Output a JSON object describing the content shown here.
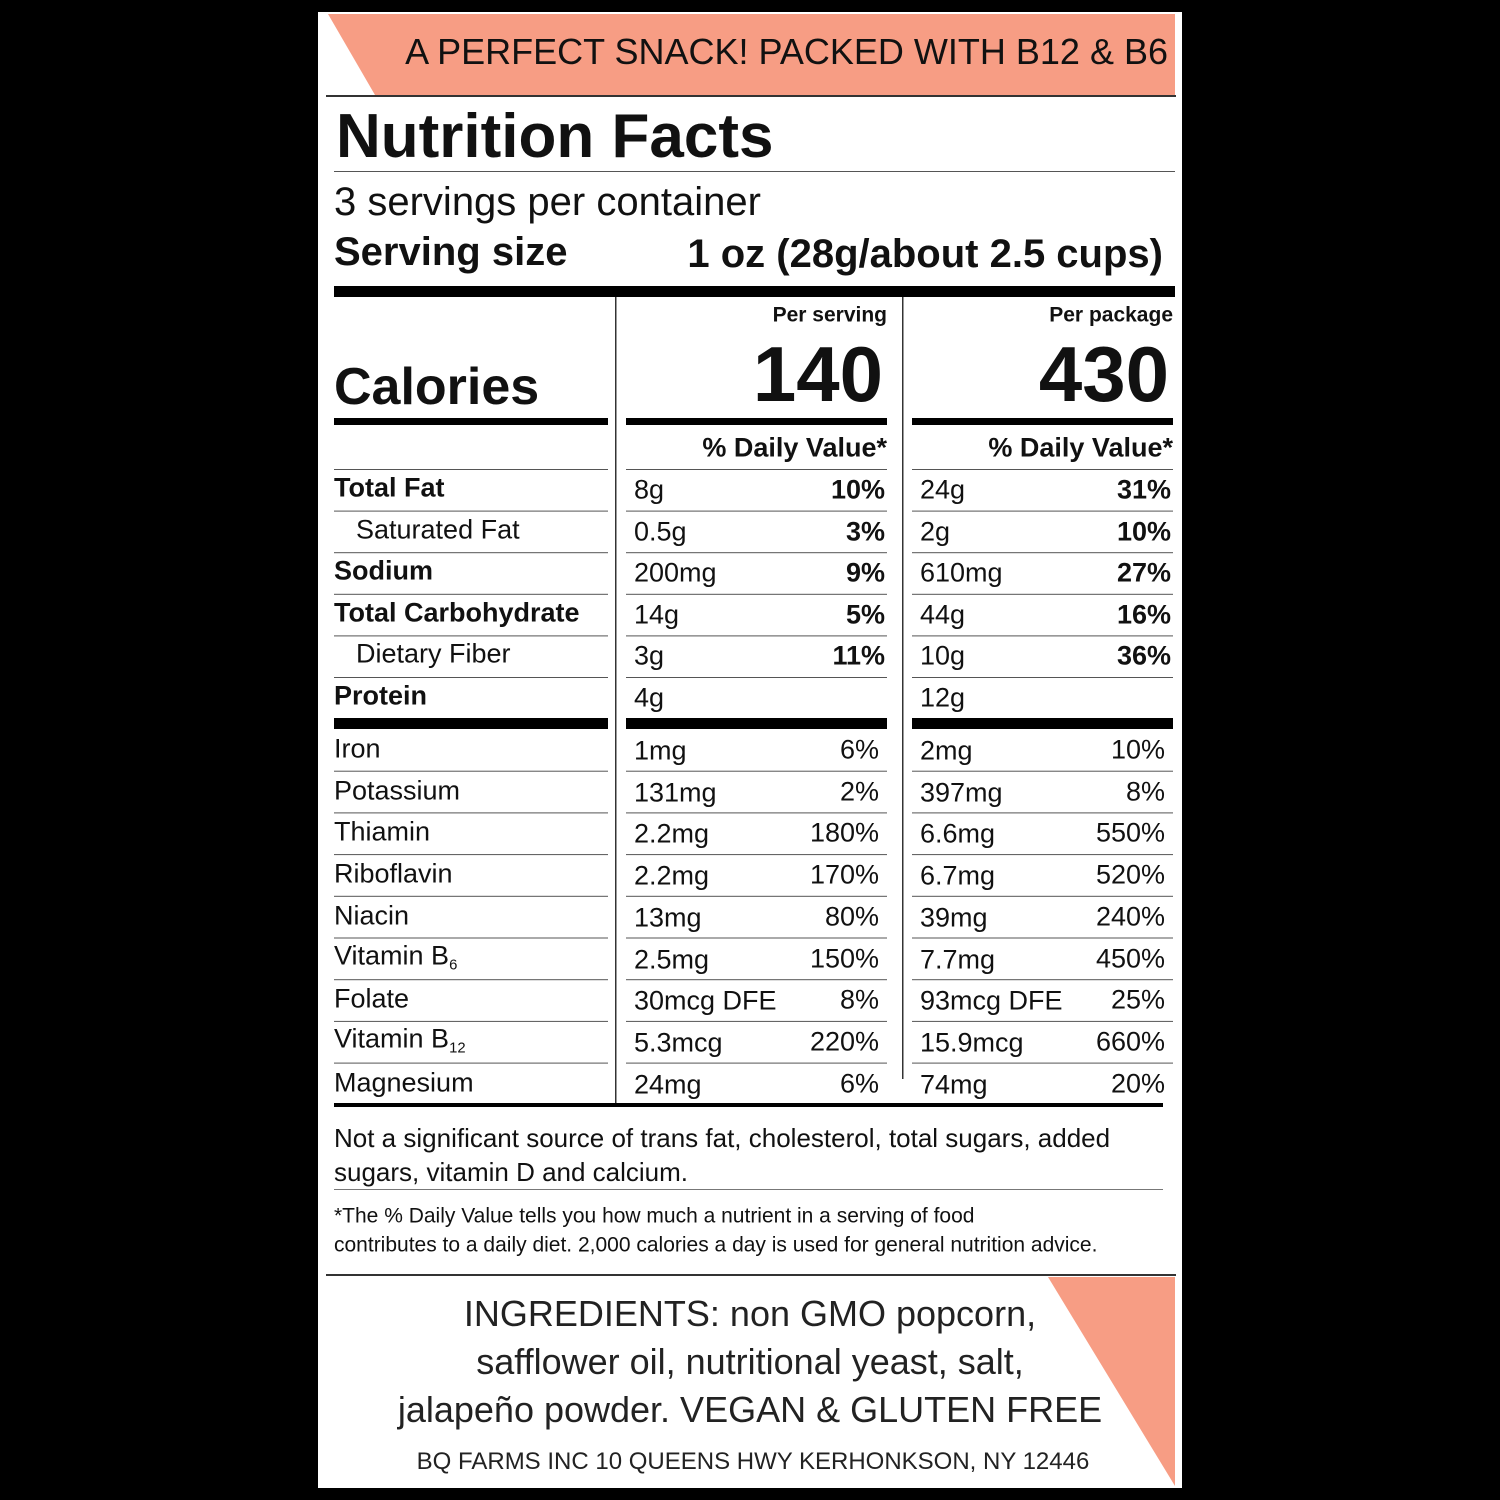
{
  "banner": "A PERFECT SNACK! PACKED WITH B12 & B6",
  "title": "Nutrition Facts",
  "servings": "3 servings per container",
  "serving_size_label": "Serving size",
  "serving_size_value": "1 oz (28g/about 2.5 cups)",
  "calories_label": "Calories",
  "columns": [
    {
      "header": "Per serving",
      "calories": "140",
      "dv_header": "% Daily Value*"
    },
    {
      "header": "Per package",
      "calories": "430",
      "dv_header": "% Daily Value*"
    }
  ],
  "nutrients": [
    {
      "name": "Total Fat",
      "bold": true,
      "indent": false,
      "values": [
        [
          "8g",
          "10%"
        ],
        [
          "24g",
          "31%"
        ]
      ]
    },
    {
      "name": "Saturated Fat",
      "bold": false,
      "indent": true,
      "values": [
        [
          "0.5g",
          "3%"
        ],
        [
          "2g",
          "10%"
        ]
      ]
    },
    {
      "name": "Sodium",
      "bold": true,
      "indent": false,
      "values": [
        [
          "200mg",
          "9%"
        ],
        [
          "610mg",
          "27%"
        ]
      ]
    },
    {
      "name": "Total Carbohydrate",
      "bold": true,
      "indent": false,
      "values": [
        [
          "14g",
          "5%"
        ],
        [
          "44g",
          "16%"
        ]
      ]
    },
    {
      "name": "Dietary Fiber",
      "bold": false,
      "indent": true,
      "values": [
        [
          "3g",
          "11%"
        ],
        [
          "10g",
          "36%"
        ]
      ]
    },
    {
      "name": "Protein",
      "bold": true,
      "indent": false,
      "values": [
        [
          "4g"
        ],
        [
          "12g"
        ]
      ]
    }
  ],
  "vitamins": [
    {
      "name": "Iron",
      "values": [
        [
          "1mg",
          "6%"
        ],
        [
          "2mg",
          "10%"
        ]
      ]
    },
    {
      "name": "Potassium",
      "values": [
        [
          "131mg",
          "2%"
        ],
        [
          "397mg",
          "8%"
        ]
      ]
    },
    {
      "name": "Thiamin",
      "values": [
        [
          "2.2mg",
          "180%"
        ],
        [
          "6.6mg",
          "550%"
        ]
      ]
    },
    {
      "name": "Riboflavin",
      "values": [
        [
          "2.2mg",
          "170%"
        ],
        [
          "6.7mg",
          "520%"
        ]
      ]
    },
    {
      "name": "Niacin",
      "values": [
        [
          "13mg",
          "80%"
        ],
        [
          "39mg",
          "240%"
        ]
      ]
    },
    {
      "name": "Vitamin B",
      "sub": "6",
      "values": [
        [
          "2.5mg",
          "150%"
        ],
        [
          "7.7mg",
          "450%"
        ]
      ]
    },
    {
      "name": "Folate",
      "values": [
        [
          "30mcg DFE",
          "8%"
        ],
        [
          "93mcg DFE",
          "25%"
        ]
      ]
    },
    {
      "name": "Vitamin B",
      "sub": "12",
      "values": [
        [
          "5.3mcg",
          "220%"
        ],
        [
          "15.9mcg",
          "660%"
        ]
      ]
    },
    {
      "name": "Magnesium",
      "values": [
        [
          "24mg",
          "6%"
        ],
        [
          "74mg",
          "20%"
        ]
      ]
    }
  ],
  "note_lines": [
    "Not a significant source of trans fat, cholesterol, total sugars, added",
    "sugars, vitamin D and calcium."
  ],
  "footnote_lines": [
    "*The % Daily Value tells you how much a nutrient in a serving of food",
    "contributes to a daily diet. 2,000 calories a day is used for general nutrition advice."
  ],
  "ingredients_lines": [
    "INGREDIENTS: non GMO popcorn,",
    "safflower oil, nutritional yeast, salt,",
    "jalapeño powder. VEGAN & GLUTEN FREE"
  ],
  "address": "BQ FARMS INC 10 QUEENS HWY KERHONKSON, NY 12446"
}
